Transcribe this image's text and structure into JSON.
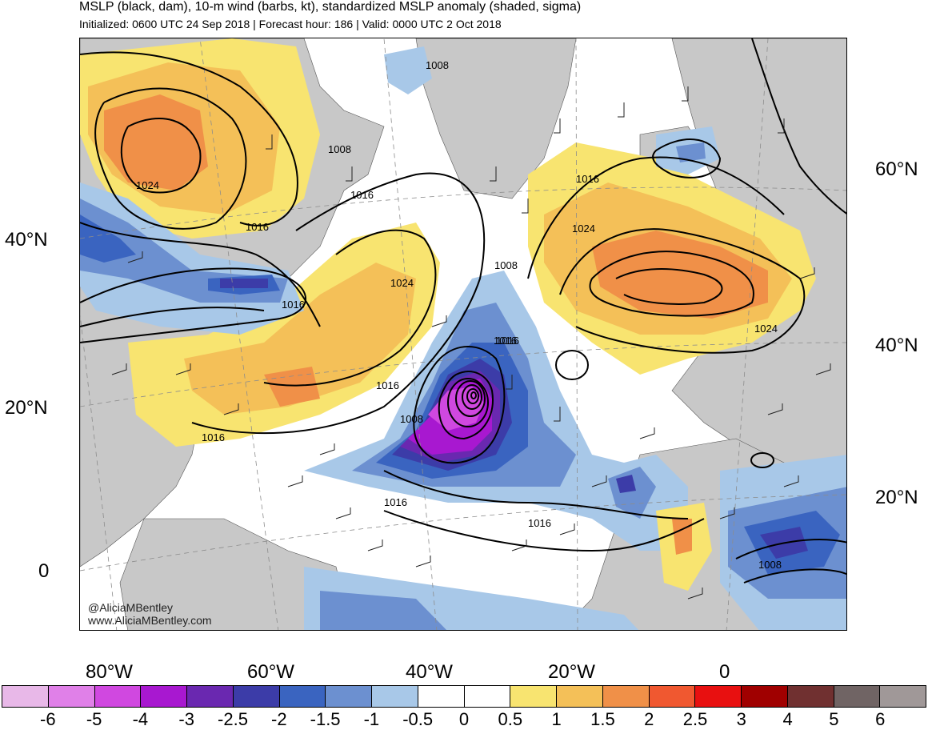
{
  "header": {
    "title": "MSLP (black, dam), 10-m wind (barbs, kt), standardized MSLP anomaly (shaded, sigma)",
    "subtitle": "Initialized: 0600 UTC 24 Sep 2018 | Forecast hour: 186 | Valid: 0000 UTC 2 Oct 2018"
  },
  "map": {
    "left_lat_labels": [
      "40°N",
      "20°N",
      "0"
    ],
    "right_lat_labels": [
      "60°N",
      "40°N",
      "20°N"
    ],
    "lon_labels": [
      "80°W",
      "60°W",
      "40°W",
      "20°W",
      "0"
    ],
    "contour_labels": [
      "1008",
      "1008",
      "1016",
      "1016",
      "1016",
      "1024",
      "1024",
      "1016",
      "1008",
      "1016",
      "1024",
      "1024",
      "1016",
      "1016",
      "1008",
      "1016",
      "1016",
      "1016",
      "1008"
    ],
    "credits": [
      "@AliciaMBentley",
      "www.AliciaMBentley.com"
    ],
    "colors": {
      "land": "#c8c8c8",
      "ocean": "#ffffff",
      "contour": "#000000"
    }
  },
  "colorbar": {
    "labels": [
      "-6",
      "-5",
      "-4",
      "-3",
      "-2.5",
      "-2",
      "-1.5",
      "-1",
      "-0.5",
      "0",
      "0.5",
      "1",
      "1.5",
      "2",
      "2.5",
      "3",
      "4",
      "5",
      "6"
    ],
    "colors": [
      "#e8b8e8",
      "#e080e8",
      "#d048e0",
      "#a818d0",
      "#6a28b0",
      "#3c3ca8",
      "#3a64c0",
      "#6c90d0",
      "#a8c8e8",
      "#ffffff",
      "#ffffff",
      "#f8e470",
      "#f4c058",
      "#f09048",
      "#f05830",
      "#e81010",
      "#a00000",
      "#703030",
      "#706464",
      "#a09898"
    ]
  }
}
